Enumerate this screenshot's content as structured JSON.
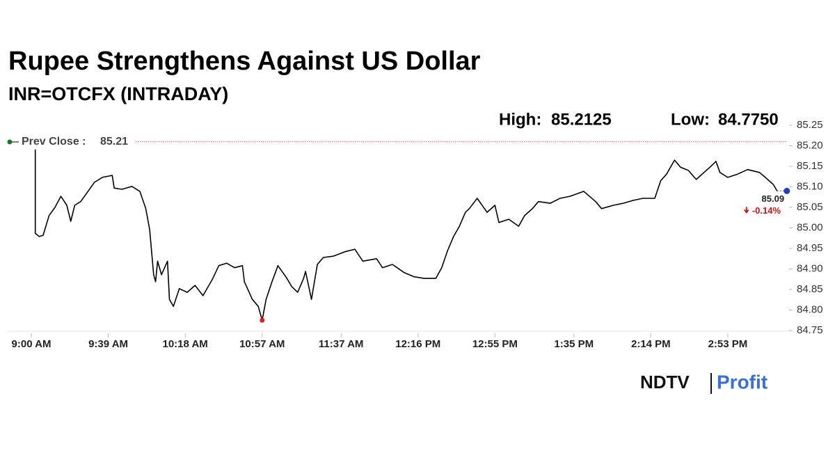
{
  "chart_data": {
    "type": "line",
    "title": "Rupee Strengthens Against US Dollar",
    "subtitle": "INR=OTCFX (INTRADAY)",
    "high": {
      "label": "High:",
      "value": 85.2125
    },
    "low": {
      "label": "Low:",
      "value": 84.775,
      "value_label": "84.7750"
    },
    "prev_close": {
      "label": "Prev Close :",
      "value": 85.21
    },
    "last": {
      "value": 85.09,
      "change": -0.14,
      "change_label": "-0.14%"
    },
    "logo": {
      "left": "NDTV",
      "right": "Profit"
    },
    "color": "#000000",
    "x": [
      2,
      2,
      4,
      6,
      9,
      12,
      15,
      18,
      20,
      22,
      25,
      28,
      32,
      36,
      41,
      42,
      46,
      51,
      55,
      58,
      60,
      62,
      63,
      64,
      66,
      69,
      70,
      72,
      75,
      79,
      83,
      87,
      90,
      92,
      95,
      99,
      103,
      107,
      108,
      112,
      115,
      117,
      119,
      122,
      125,
      129,
      132,
      135,
      138,
      139,
      142,
      145,
      148,
      153,
      159,
      164,
      168,
      175,
      178,
      183,
      189,
      194,
      199,
      205,
      208,
      211,
      214,
      217,
      220,
      222,
      226,
      231,
      235,
      237,
      242,
      247,
      250,
      254,
      257,
      263,
      268,
      273,
      280,
      286,
      289,
      295,
      300,
      305,
      310,
      316,
      319,
      322,
      326,
      329,
      333,
      337,
      340,
      344,
      347,
      349,
      353,
      358,
      363,
      369,
      372,
      376,
      378
    ],
    "values": [
      85.191,
      84.987,
      84.979,
      84.982,
      85.03,
      85.05,
      85.077,
      85.055,
      85.016,
      85.055,
      85.064,
      85.084,
      85.111,
      85.123,
      85.128,
      85.097,
      85.094,
      85.101,
      85.089,
      85.047,
      84.996,
      84.886,
      84.869,
      84.919,
      84.886,
      84.919,
      84.826,
      84.809,
      84.852,
      84.843,
      84.86,
      84.835,
      84.86,
      84.877,
      84.908,
      84.914,
      84.903,
      84.908,
      84.869,
      84.826,
      84.809,
      84.775,
      84.826,
      84.869,
      84.908,
      84.881,
      84.857,
      84.843,
      84.877,
      84.894,
      84.826,
      84.911,
      84.928,
      84.931,
      84.942,
      84.948,
      84.919,
      84.925,
      84.903,
      84.911,
      84.891,
      84.881,
      84.877,
      84.877,
      84.903,
      84.945,
      84.979,
      85.004,
      85.038,
      85.047,
      85.072,
      85.038,
      85.055,
      85.013,
      85.021,
      85.004,
      85.03,
      85.047,
      85.064,
      85.06,
      85.072,
      85.077,
      85.089,
      85.064,
      85.047,
      85.055,
      85.06,
      85.067,
      85.072,
      85.072,
      85.115,
      85.131,
      85.165,
      85.148,
      85.14,
      85.118,
      85.131,
      85.148,
      85.162,
      85.135,
      85.123,
      85.131,
      85.142,
      85.135,
      85.123,
      85.106,
      85.09
    ],
    "ylim": [
      84.75,
      85.25
    ],
    "yticks": [
      84.75,
      {
        "value": 84.8,
        "label": "84.80"
      },
      84.85,
      {
        "value": 84.9,
        "label": "84.90"
      },
      84.95,
      {
        "value": 85,
        "label": "85.00"
      },
      85.05,
      {
        "value": 85.1,
        "label": "85.10"
      },
      85.15,
      {
        "value": 85.2,
        "label": "85.20"
      },
      85.25
    ],
    "xlim": [
      0,
      383
    ],
    "xticks": [
      {
        "value": 0,
        "label": "9:00 AM"
      },
      {
        "value": 39,
        "label": "9:39 AM"
      },
      {
        "value": 78,
        "label": "10:18 AM"
      },
      {
        "value": 117,
        "label": "10:57 AM"
      },
      {
        "value": 157,
        "label": "11:37 AM"
      },
      {
        "value": 196,
        "label": "12:16 PM"
      },
      {
        "value": 235,
        "label": "12:55 PM"
      },
      {
        "value": 275,
        "label": "1:35 PM"
      },
      {
        "value": 314,
        "label": "2:14 PM"
      },
      {
        "value": 353,
        "label": "2:53 PM"
      }
    ]
  }
}
